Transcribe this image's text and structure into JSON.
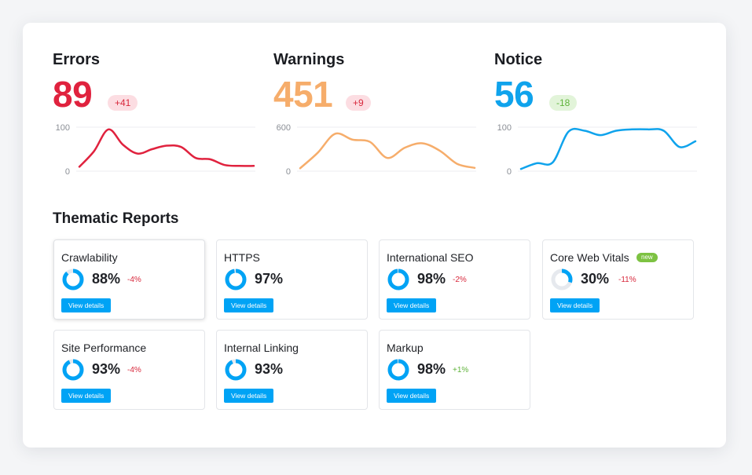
{
  "colors": {
    "errors": "#e0223e",
    "warnings": "#f6ad6b",
    "notice": "#0fa3ec",
    "neg": "#d8283c",
    "pos": "#5fb33a",
    "accent": "#00a3f5"
  },
  "metrics": [
    {
      "title": "Errors",
      "value": "89",
      "delta": "+41",
      "delta_type": "neg",
      "color": "#e0223e",
      "y_ticks": [
        "100",
        "0"
      ],
      "chart_data": {
        "type": "line",
        "ylim": [
          0,
          100
        ],
        "values": [
          10,
          45,
          95,
          60,
          40,
          50,
          58,
          55,
          30,
          27,
          14,
          12,
          12
        ]
      }
    },
    {
      "title": "Warnings",
      "value": "451",
      "delta": "+9",
      "delta_type": "neg",
      "color": "#f6ad6b",
      "y_ticks": [
        "600",
        "0"
      ],
      "chart_data": {
        "type": "line",
        "ylim": [
          0,
          600
        ],
        "values": [
          40,
          250,
          510,
          430,
          400,
          180,
          320,
          380,
          280,
          100,
          45
        ]
      }
    },
    {
      "title": "Notice",
      "value": "56",
      "delta": "-18",
      "delta_type": "pos",
      "color": "#0fa3ec",
      "y_ticks": [
        "100",
        "0"
      ],
      "chart_data": {
        "type": "line",
        "ylim": [
          0,
          100
        ],
        "values": [
          5,
          18,
          20,
          90,
          92,
          82,
          92,
          95,
          95,
          92,
          55,
          68
        ]
      }
    }
  ],
  "section_title": "Thematic Reports",
  "reports": [
    {
      "name": "Crawlability",
      "percent": 88,
      "pct_label": "88%",
      "delta": "-4%",
      "delta_type": "neg",
      "button": "View details",
      "badge": ""
    },
    {
      "name": "HTTPS",
      "percent": 97,
      "pct_label": "97%",
      "delta": "",
      "delta_type": "",
      "button": "View details",
      "badge": ""
    },
    {
      "name": "International SEO",
      "percent": 98,
      "pct_label": "98%",
      "delta": "-2%",
      "delta_type": "neg",
      "button": "View details",
      "badge": ""
    },
    {
      "name": "Core Web Vitals",
      "percent": 30,
      "pct_label": "30%",
      "delta": "-11%",
      "delta_type": "neg",
      "button": "View details",
      "badge": "new"
    },
    {
      "name": "Site Performance",
      "percent": 93,
      "pct_label": "93%",
      "delta": "-4%",
      "delta_type": "neg",
      "button": "View details",
      "badge": ""
    },
    {
      "name": "Internal Linking",
      "percent": 93,
      "pct_label": "93%",
      "delta": "",
      "delta_type": "",
      "button": "View details",
      "badge": ""
    },
    {
      "name": "Markup",
      "percent": 98,
      "pct_label": "98%",
      "delta": "+1%",
      "delta_type": "pos",
      "button": "View details",
      "badge": ""
    }
  ]
}
